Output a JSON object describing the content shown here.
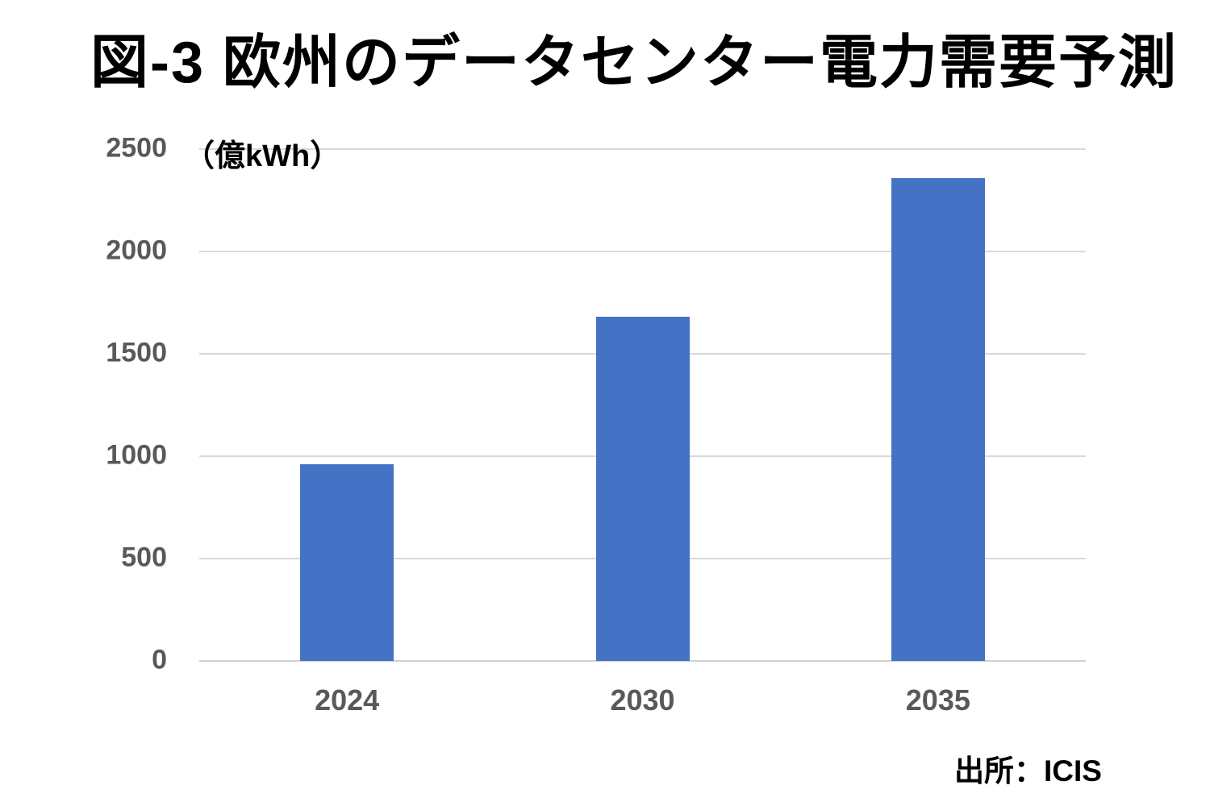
{
  "colors": {
    "bar": "#4472C4",
    "gridline": "#D9D9D9",
    "tick_label": "#595959",
    "text": "#000000"
  },
  "chart_data": {
    "type": "bar",
    "title": "図-3 欧州のデータセンター電力需要予測",
    "unit_label": "（億kWh）",
    "categories": [
      "2024",
      "2030",
      "2035"
    ],
    "values": [
      960,
      1680,
      2360
    ],
    "yticks": [
      0,
      500,
      1000,
      1500,
      2000,
      2500
    ],
    "ylim": [
      0,
      2500
    ],
    "xlabel": "",
    "ylabel": "",
    "grid": true,
    "legend": false,
    "source": "出所：ICIS"
  }
}
